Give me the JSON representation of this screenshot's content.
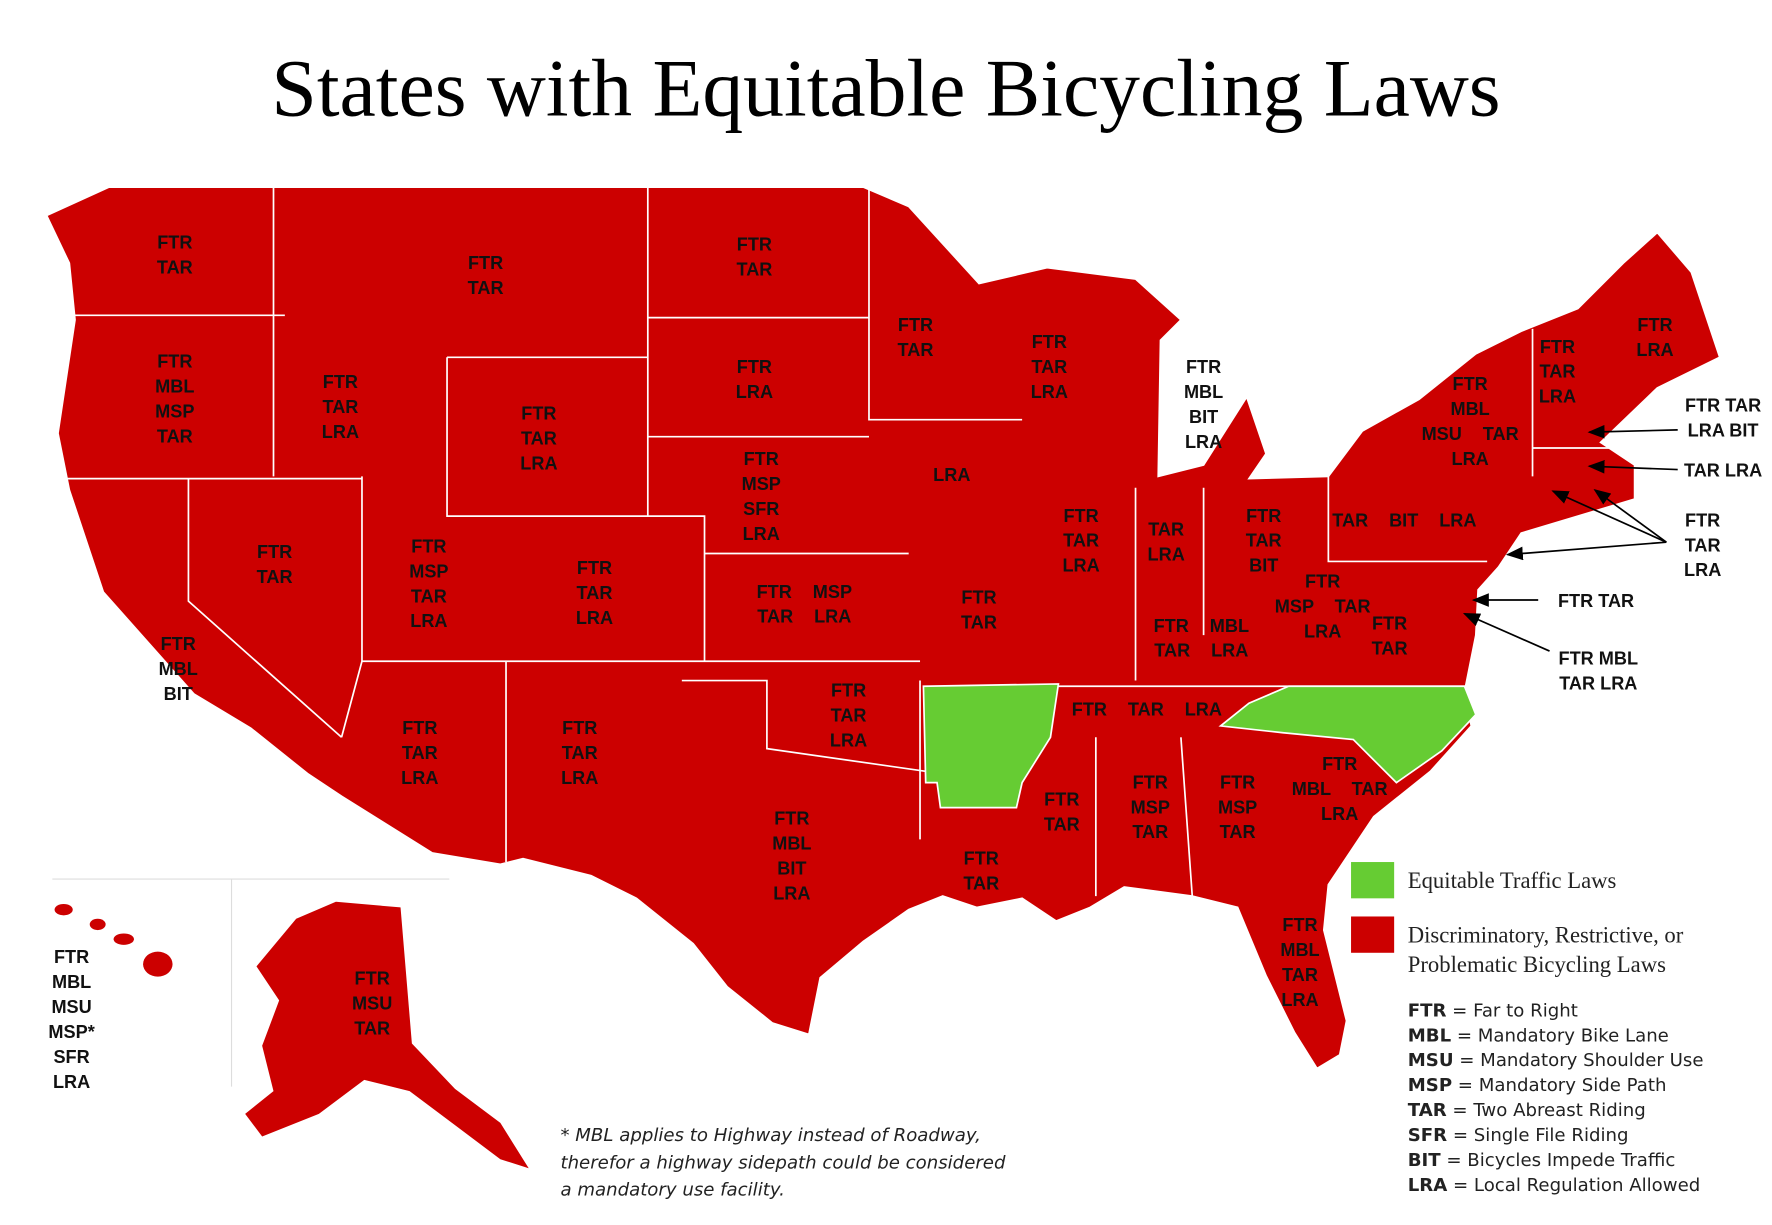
{
  "title": "States with Equitable Bicycling Laws",
  "states": [
    {
      "lines": [
        "FTR",
        "TAR"
      ]
    },
    {
      "lines": [
        "FTR",
        "MBL",
        "MSP",
        "TAR"
      ]
    },
    {
      "lines": [
        "FTR",
        "MBL",
        "BIT"
      ]
    },
    {
      "lines": [
        "FTR",
        "TAR",
        "LRA"
      ]
    },
    {
      "lines": [
        "FTR",
        "TAR"
      ]
    },
    {
      "lines": [
        "FTR",
        "TAR"
      ]
    },
    {
      "lines": [
        "FTR",
        "TAR",
        "LRA"
      ]
    },
    {
      "lines": [
        "FTR",
        "MSP",
        "TAR",
        "LRA"
      ]
    },
    {
      "lines": [
        "FTR",
        "TAR",
        "LRA"
      ]
    },
    {
      "lines": [
        "FTR",
        "TAR",
        "LRA"
      ]
    },
    {
      "lines": [
        "FTR",
        "TAR",
        "LRA"
      ]
    },
    {
      "lines": [
        "FTR",
        "TAR"
      ]
    },
    {
      "lines": [
        "FTR",
        "LRA"
      ]
    },
    {
      "lines": [
        "FTR",
        "MSP",
        "SFR",
        "LRA"
      ]
    },
    {
      "lines": [
        "FTR MSP",
        "TAR LRA"
      ]
    },
    {
      "lines": [
        "FTR",
        "TAR",
        "LRA"
      ]
    },
    {
      "lines": [
        "FTR",
        "MBL",
        "BIT",
        "LRA"
      ]
    },
    {
      "lines": [
        "FTR",
        "TAR"
      ]
    },
    {
      "lines": [
        "LRA"
      ]
    },
    {
      "lines": [
        "FTR",
        "TAR"
      ]
    },
    {
      "lines": [
        "FTR",
        "TAR"
      ]
    },
    {
      "lines": [
        "FTR",
        "TAR",
        "LRA"
      ]
    },
    {
      "lines": [
        "FTR",
        "TAR",
        "LRA"
      ]
    },
    {
      "lines": [
        "FTR",
        "MBL",
        "BIT",
        "LRA"
      ]
    },
    {
      "lines": [
        "TAR",
        "LRA"
      ]
    },
    {
      "lines": [
        "FTR",
        "TAR",
        "BIT"
      ]
    },
    {
      "lines": [
        "FTR MBL",
        "TAR LRA"
      ]
    },
    {
      "lines": [
        "FTR TAR LRA"
      ]
    },
    {
      "lines": [
        "FTR",
        "TAR"
      ]
    },
    {
      "lines": [
        "FTR",
        "MSP",
        "TAR"
      ]
    },
    {
      "lines": [
        "FTR",
        "MSP",
        "TAR"
      ]
    },
    {
      "lines": [
        "FTR",
        "MBL",
        "TAR",
        "LRA"
      ]
    },
    {
      "lines": [
        "FTR",
        "MBL TAR",
        "LRA"
      ]
    },
    {
      "lines": [
        "FTR",
        "TAR"
      ]
    },
    {
      "lines": [
        "FTR",
        "MSP TAR",
        "LRA"
      ]
    },
    {
      "lines": [
        "TAR BIT LRA"
      ]
    },
    {
      "lines": [
        "FTR",
        "MBL",
        "MSU TAR",
        "LRA"
      ]
    },
    {
      "lines": [
        "FTR",
        "TAR",
        "LRA"
      ]
    },
    {
      "lines": [
        "FTR",
        "LRA"
      ]
    },
    {
      "lines": [
        "FTR",
        "MBL",
        "MSU",
        "MSP*",
        "SFR",
        "LRA"
      ]
    },
    {
      "lines": [
        "FTR",
        "MSU",
        "TAR"
      ]
    }
  ],
  "callouts": [
    {
      "lines": [
        "FTR TAR",
        "LRA BIT"
      ]
    },
    {
      "lines": [
        "TAR LRA"
      ]
    },
    {
      "lines": [
        "FTR",
        "TAR",
        "LRA"
      ]
    },
    {
      "lines": [
        "FTR TAR"
      ]
    },
    {
      "lines": [
        "FTR MBL",
        "TAR LRA"
      ]
    }
  ],
  "legend": [
    {
      "label": [
        "Equitable Traffic Laws"
      ],
      "color": "#66cc33"
    },
    {
      "label": [
        "Discriminatory, Restrictive, or",
        "Problematic Bicycling Laws"
      ],
      "color": "#cc0000"
    }
  ],
  "abbreviations": [
    {
      "abbr": "FTR",
      "meaning": "= Far to Right"
    },
    {
      "abbr": "MBL",
      "meaning": "= Mandatory Bike Lane"
    },
    {
      "abbr": "MSU",
      "meaning": "= Mandatory Shoulder Use"
    },
    {
      "abbr": "MSP",
      "meaning": "= Mandatory Side Path"
    },
    {
      "abbr": "TAR",
      "meaning": "= Two Abreast Riding"
    },
    {
      "abbr": "SFR",
      "meaning": "= Single File Riding"
    },
    {
      "abbr": "BIT",
      "meaning": "= Bicycles Impede Traffic"
    },
    {
      "abbr": "LRA",
      "meaning": "= Local Regulation Allowed"
    }
  ],
  "footnote": [
    "* MBL applies to Highway instead of Roadway,",
    "therefor a highway sidepath could be considered",
    "a mandatory use facility."
  ]
}
